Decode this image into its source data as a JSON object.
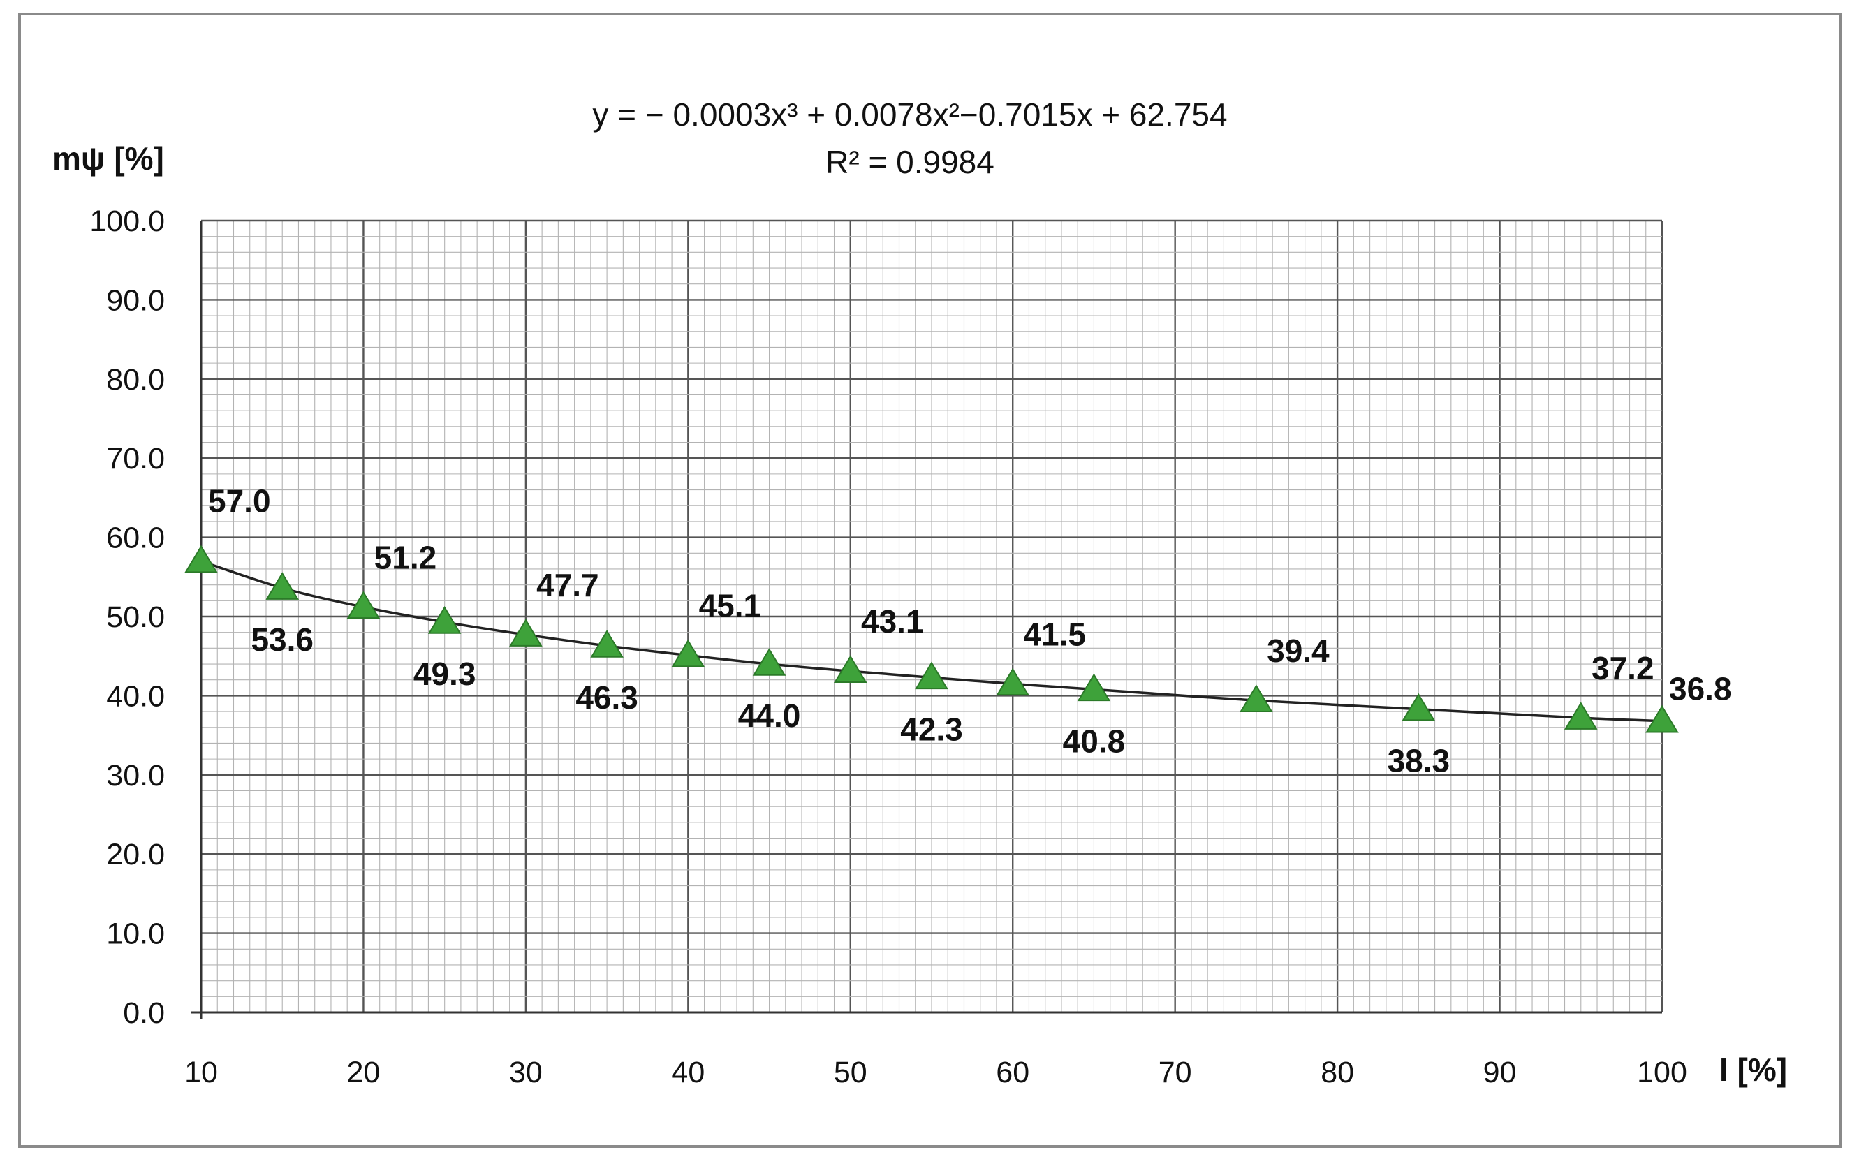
{
  "chart_data": {
    "type": "scatter",
    "equation": "y = − 0.0003x³ + 0.0078x²−0.7015x + 62.754",
    "r_squared": "R² = 0.9984",
    "xlabel": "I [%]",
    "ylabel": "mψ [%]",
    "xlim": [
      10,
      100
    ],
    "ylim": [
      0,
      100
    ],
    "x_ticks": [
      "10",
      "20",
      "30",
      "40",
      "50",
      "60",
      "70",
      "80",
      "90",
      "100"
    ],
    "y_ticks": [
      "0.0",
      "10.0",
      "20.0",
      "30.0",
      "40.0",
      "50.0",
      "60.0",
      "70.0",
      "80.0",
      "90.0",
      "100.0"
    ],
    "grid": true,
    "trendline": "polynomial-3",
    "marker": "triangle",
    "marker_color": "#3ea23a",
    "points": [
      {
        "x": 10,
        "y": 57.0,
        "label": "57.0"
      },
      {
        "x": 15,
        "y": 53.6,
        "label": "53.6"
      },
      {
        "x": 20,
        "y": 51.2,
        "label": "51.2"
      },
      {
        "x": 25,
        "y": 49.3,
        "label": "49.3"
      },
      {
        "x": 30,
        "y": 47.7,
        "label": "47.7"
      },
      {
        "x": 35,
        "y": 46.3,
        "label": "46.3"
      },
      {
        "x": 40,
        "y": 45.1,
        "label": "45.1"
      },
      {
        "x": 45,
        "y": 44.0,
        "label": "44.0"
      },
      {
        "x": 50,
        "y": 43.1,
        "label": "43.1"
      },
      {
        "x": 55,
        "y": 42.3,
        "label": "42.3"
      },
      {
        "x": 60,
        "y": 41.5,
        "label": "41.5"
      },
      {
        "x": 65,
        "y": 40.8,
        "label": "40.8"
      },
      {
        "x": 75,
        "y": 39.4,
        "label": "39.4"
      },
      {
        "x": 85,
        "y": 38.3,
        "label": "38.3"
      },
      {
        "x": 95,
        "y": 37.2,
        "label": "37.2"
      },
      {
        "x": 100,
        "y": 36.8,
        "label": "36.8"
      }
    ]
  }
}
